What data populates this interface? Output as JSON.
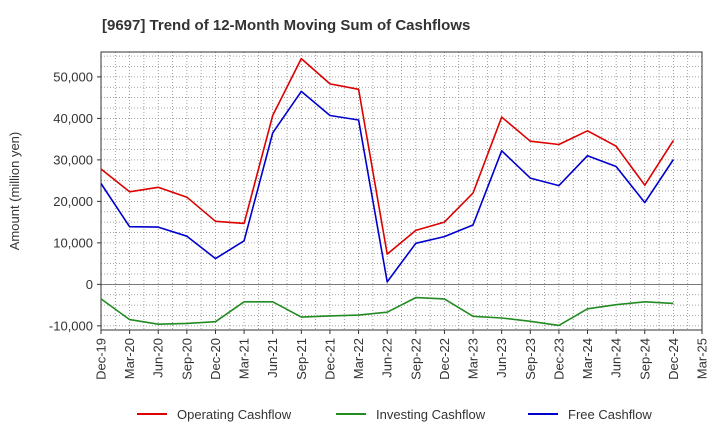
{
  "chart_data": {
    "type": "line",
    "title": "[9697]  Trend of 12-Month Moving Sum of Cashflows",
    "xlabel": "",
    "ylabel": "Amount (million yen)",
    "ylim": [
      -11000,
      56000
    ],
    "grid": true,
    "legend_position": "bottom",
    "y_ticks": [
      -10000,
      0,
      10000,
      20000,
      30000,
      40000,
      50000
    ],
    "y_tick_labels": [
      "-10,000",
      "0",
      "10,000",
      "20,000",
      "30,000",
      "40,000",
      "50,000"
    ],
    "categories": [
      "Dec-19",
      "Mar-20",
      "Jun-20",
      "Sep-20",
      "Dec-20",
      "Mar-21",
      "Jun-21",
      "Sep-21",
      "Dec-21",
      "Mar-22",
      "Jun-22",
      "Sep-22",
      "Dec-22",
      "Mar-23",
      "Jun-23",
      "Sep-23",
      "Dec-23",
      "Mar-24",
      "Jun-24",
      "Sep-24",
      "Dec-24",
      "Mar-25"
    ],
    "series": [
      {
        "name": "Operating Cashflow",
        "color": "#dd0000",
        "values": [
          27800,
          22300,
          23400,
          21000,
          15200,
          14700,
          40700,
          54400,
          48300,
          47000,
          7300,
          13000,
          15000,
          22000,
          40300,
          34500,
          33700,
          37000,
          33300,
          23900,
          34700,
          null
        ]
      },
      {
        "name": "Investing Cashflow",
        "color": "#228b22",
        "values": [
          -3500,
          -8500,
          -9600,
          -9400,
          -9000,
          -4200,
          -4200,
          -7900,
          -7600,
          -7400,
          -6700,
          -3200,
          -3500,
          -7700,
          -8100,
          -8900,
          -9900,
          -5900,
          -4900,
          -4200,
          -4600,
          null
        ]
      },
      {
        "name": "Free Cashflow",
        "color": "#0000cc",
        "values": [
          24300,
          13900,
          13800,
          11600,
          6200,
          10500,
          36500,
          46500,
          40700,
          39600,
          600,
          9900,
          11500,
          14300,
          32200,
          25600,
          23800,
          31000,
          28400,
          19700,
          30100,
          null
        ]
      }
    ]
  }
}
